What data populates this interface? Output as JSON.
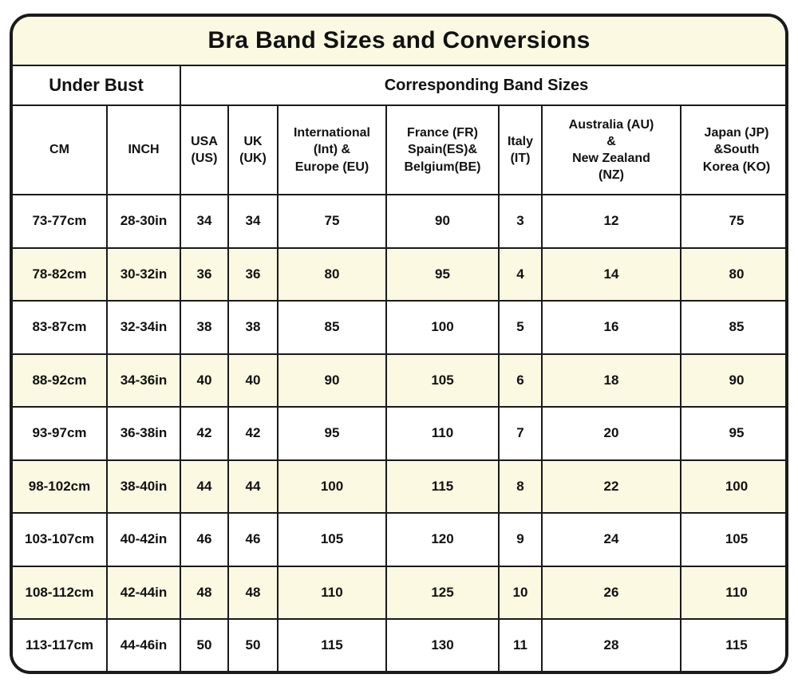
{
  "title": "Bra Band Sizes and Conversions",
  "colors": {
    "cream_highlight": "#FBF9E1",
    "grid_line": "#1A1A1A",
    "text": "#111111",
    "row_white": "#FFFFFF"
  },
  "table": {
    "group_headers": [
      {
        "label": "Under Bust",
        "colspan": 2
      },
      {
        "label": "Corresponding Band Sizes",
        "colspan": 7
      }
    ],
    "columns": [
      {
        "label": "CM"
      },
      {
        "label": "INCH"
      },
      {
        "label": "USA\n(US)"
      },
      {
        "label": "UK\n(UK)"
      },
      {
        "label": "International\n(Int) &\nEurope (EU)"
      },
      {
        "label": "France (FR)\nSpain(ES)&\nBelgium(BE)"
      },
      {
        "label": "Italy\n(IT)"
      },
      {
        "label": "Australia (AU)\n&\nNew Zealand\n(NZ)"
      },
      {
        "label": "Japan (JP)\n&South\nKorea (KO)"
      }
    ],
    "rows": [
      {
        "shaded": false,
        "cells": [
          "73-77cm",
          "28-30in",
          "34",
          "34",
          "75",
          "90",
          "3",
          "12",
          "75"
        ]
      },
      {
        "shaded": true,
        "cells": [
          "78-82cm",
          "30-32in",
          "36",
          "36",
          "80",
          "95",
          "4",
          "14",
          "80"
        ]
      },
      {
        "shaded": false,
        "cells": [
          "83-87cm",
          "32-34in",
          "38",
          "38",
          "85",
          "100",
          "5",
          "16",
          "85"
        ]
      },
      {
        "shaded": true,
        "cells": [
          "88-92cm",
          "34-36in",
          "40",
          "40",
          "90",
          "105",
          "6",
          "18",
          "90"
        ]
      },
      {
        "shaded": false,
        "cells": [
          "93-97cm",
          "36-38in",
          "42",
          "42",
          "95",
          "110",
          "7",
          "20",
          "95"
        ]
      },
      {
        "shaded": true,
        "cells": [
          "98-102cm",
          "38-40in",
          "44",
          "44",
          "100",
          "115",
          "8",
          "22",
          "100"
        ]
      },
      {
        "shaded": false,
        "cells": [
          "103-107cm",
          "40-42in",
          "46",
          "46",
          "105",
          "120",
          "9",
          "24",
          "105"
        ]
      },
      {
        "shaded": true,
        "cells": [
          "108-112cm",
          "42-44in",
          "48",
          "48",
          "110",
          "125",
          "10",
          "26",
          "110"
        ]
      },
      {
        "shaded": false,
        "cells": [
          "113-117cm",
          "44-46in",
          "50",
          "50",
          "115",
          "130",
          "11",
          "28",
          "115"
        ]
      }
    ]
  }
}
